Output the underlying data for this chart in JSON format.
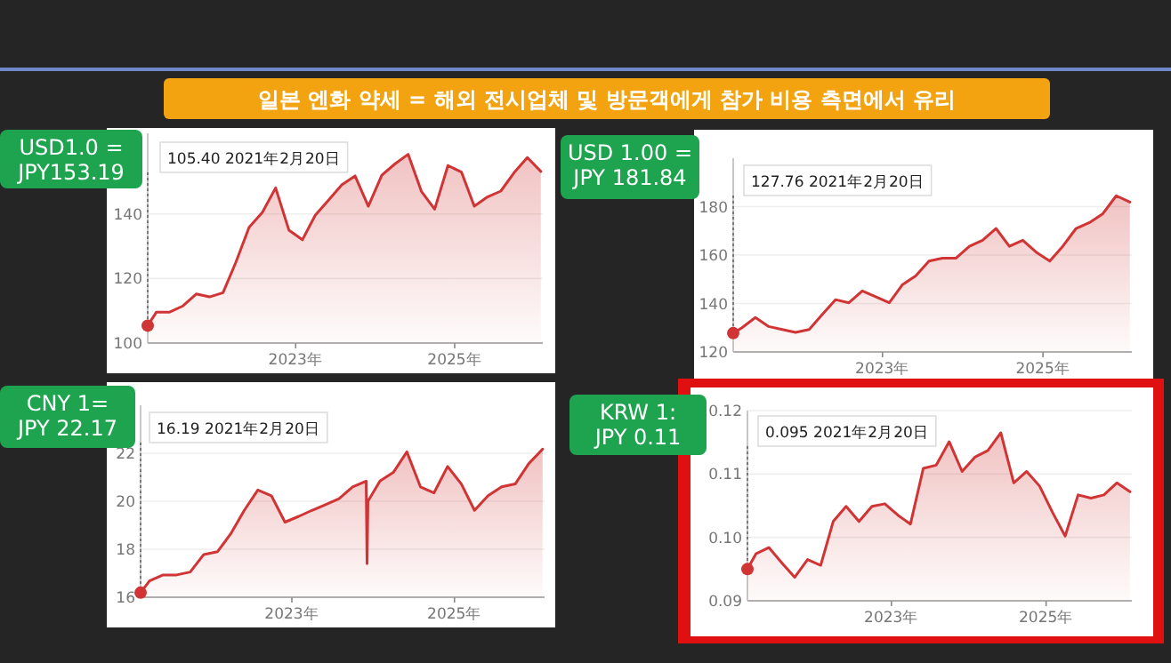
{
  "chart_data": [
    {
      "type": "area",
      "title": "일본 엔화 약세 = 해외 전시업체 및 방문객에게 참가 비용 측면에서 유리",
      "x": [
        "2021-02-20",
        "2021-04-01",
        "2021-06-01",
        "2021-08-01",
        "2021-10-01",
        "2021-12-01",
        "2022-02-01",
        "2022-04-01",
        "2022-06-01",
        "2022-08-01",
        "2022-10-01",
        "2022-12-01",
        "2023-02-01",
        "2023-04-01",
        "2023-06-01",
        "2023-08-01",
        "2023-10-01",
        "2023-12-01",
        "2024-02-01",
        "2024-04-01",
        "2024-06-01",
        "2024-08-01",
        "2024-10-01",
        "2024-12-01",
        "2025-02-01",
        "2025-04-01",
        "2025-06-01",
        "2025-08-01",
        "2025-10-01",
        "2025-12-01",
        "2026-02-01"
      ],
      "series": [
        {
          "color": "#d03434",
          "values": [
            105.4,
            109.6,
            109.6,
            111.5,
            115.2,
            114.3,
            115.6,
            125,
            135.9,
            140.5,
            148.1,
            135,
            132,
            139.6,
            144.3,
            149,
            151.8,
            142.4,
            152,
            155.5,
            158.5,
            147,
            141.5,
            155,
            153,
            142.4,
            145.3,
            147.1,
            152.8,
            157.5,
            153.19
          ]
        }
      ],
      "xlim": [
        "2021-02-20",
        "2026-02-10"
      ],
      "xticks": [
        {
          "value": "2023-01-01",
          "label": "2023年"
        },
        {
          "value": "2025-01-01",
          "label": "2025年"
        }
      ],
      "ylim": [
        100,
        165
      ],
      "yticks": [
        100,
        120,
        140
      ],
      "grid": "y",
      "annotations": [
        "105.40  2021年2月20日",
        "USD1.0 =\nJPY153.19"
      ]
    },
    {
      "type": "area",
      "x": [
        "2021-02-20",
        "2021-04-01",
        "2021-06-01",
        "2021-08-01",
        "2021-10-01",
        "2021-12-01",
        "2022-02-01",
        "2022-04-01",
        "2022-06-01",
        "2022-08-01",
        "2022-10-01",
        "2022-12-01",
        "2023-02-01",
        "2023-04-01",
        "2023-06-01",
        "2023-08-01",
        "2023-10-01",
        "2023-12-01",
        "2024-02-01",
        "2024-04-01",
        "2024-06-01",
        "2024-08-01",
        "2024-10-01",
        "2024-12-01",
        "2025-02-01",
        "2025-04-01",
        "2025-06-01",
        "2025-08-01",
        "2025-10-01",
        "2025-12-01",
        "2026-02-01"
      ],
      "series": [
        {
          "color": "#d03434",
          "values": [
            127.76,
            130,
            134.2,
            130.5,
            129.3,
            128.1,
            129.3,
            135.4,
            141.6,
            140.3,
            145.2,
            142.8,
            140.3,
            147.7,
            151.4,
            157.5,
            158.7,
            158.7,
            163.6,
            166.1,
            171,
            163.6,
            166.1,
            161.2,
            157.5,
            163.6,
            171,
            173.4,
            177.1,
            184.5,
            181.84
          ]
        }
      ],
      "xlim": [
        "2021-02-20",
        "2026-02-10"
      ],
      "xticks": [
        {
          "value": "2023-01-01",
          "label": "2023年"
        },
        {
          "value": "2025-01-01",
          "label": "2025年"
        }
      ],
      "ylim": [
        120,
        200
      ],
      "yticks": [
        120,
        140,
        160,
        180
      ],
      "grid": "y",
      "annotations": [
        "127.76  2021年2月20日",
        "USD 1.00 =\nJPY 181.84"
      ]
    },
    {
      "type": "area",
      "x": [
        "2021-02-20",
        "2021-04-01",
        "2021-06-01",
        "2021-08-01",
        "2021-10-01",
        "2021-12-01",
        "2022-02-01",
        "2022-04-01",
        "2022-06-01",
        "2022-08-01",
        "2022-10-01",
        "2022-12-01",
        "2023-02-01",
        "2023-04-01",
        "2023-06-01",
        "2023-08-01",
        "2023-10-01",
        "2023-12-01",
        "2023-12-05",
        "2023-12-09",
        "2024-02-01",
        "2024-04-01",
        "2024-06-01",
        "2024-08-01",
        "2024-10-01",
        "2024-12-01",
        "2025-02-01",
        "2025-04-01",
        "2025-06-01",
        "2025-08-01",
        "2025-10-01",
        "2025-12-01",
        "2026-02-01"
      ],
      "series": [
        {
          "color": "#d03434",
          "values": [
            16.19,
            16.68,
            16.93,
            16.93,
            17.05,
            17.78,
            17.9,
            18.64,
            19.62,
            20.47,
            20.23,
            19.13,
            19.37,
            19.62,
            19.86,
            20.11,
            20.6,
            20.84,
            17.4,
            20.0,
            20.84,
            21.2,
            22.06,
            20.6,
            20.35,
            21.45,
            20.72,
            19.62,
            20.23,
            20.6,
            20.72,
            21.57,
            22.17
          ]
        }
      ],
      "xlim": [
        "2021-02-20",
        "2026-02-10"
      ],
      "xticks": [
        {
          "value": "2023-01-01",
          "label": "2023年"
        },
        {
          "value": "2025-01-01",
          "label": "2025年"
        }
      ],
      "ylim": [
        16,
        24
      ],
      "yticks": [
        16,
        18,
        20,
        22
      ],
      "grid": "y",
      "annotations": [
        "16.19  2021年2月20日",
        "CNY 1=\nJPY 22.17"
      ]
    },
    {
      "type": "area",
      "x": [
        "2021-02-20",
        "2021-04-01",
        "2021-06-01",
        "2021-08-01",
        "2021-10-01",
        "2021-12-01",
        "2022-02-01",
        "2022-04-01",
        "2022-06-01",
        "2022-08-01",
        "2022-10-01",
        "2022-12-01",
        "2023-02-01",
        "2023-04-01",
        "2023-06-01",
        "2023-08-01",
        "2023-10-01",
        "2023-12-01",
        "2024-02-01",
        "2024-04-01",
        "2024-06-01",
        "2024-08-01",
        "2024-10-01",
        "2024-12-01",
        "2025-02-01",
        "2025-04-01",
        "2025-06-01",
        "2025-08-01",
        "2025-10-01",
        "2025-12-01",
        "2026-02-01"
      ],
      "series": [
        {
          "color": "#d03434",
          "values": [
            0.095,
            0.0974,
            0.0984,
            0.096,
            0.0937,
            0.0965,
            0.0956,
            0.1025,
            0.1049,
            0.1025,
            0.1049,
            0.1053,
            0.1035,
            0.1021,
            0.1109,
            0.1114,
            0.1151,
            0.1104,
            0.1127,
            0.1137,
            0.1165,
            0.1086,
            0.1104,
            0.1081,
            0.1039,
            0.1002,
            0.1067,
            0.1062,
            0.1067,
            0.1086,
            0.1072
          ]
        }
      ],
      "xlim": [
        "2021-02-20",
        "2026-02-10"
      ],
      "xticks": [
        {
          "value": "2023-01-01",
          "label": "2023年"
        },
        {
          "value": "2025-01-01",
          "label": "2025年"
        }
      ],
      "ylim": [
        0.09,
        0.12
      ],
      "yticks": [
        {
          "value": 0.09,
          "label": "0.09"
        },
        {
          "value": 0.1,
          "label": "0.10"
        },
        {
          "value": 0.11,
          "label": "0.11"
        },
        {
          "value": 0.12,
          "label": "0.12"
        }
      ],
      "grid": "y",
      "annotations": [
        "0.095  2021年2月20日",
        "KRW 1:\nJPY 0.11"
      ]
    }
  ]
}
